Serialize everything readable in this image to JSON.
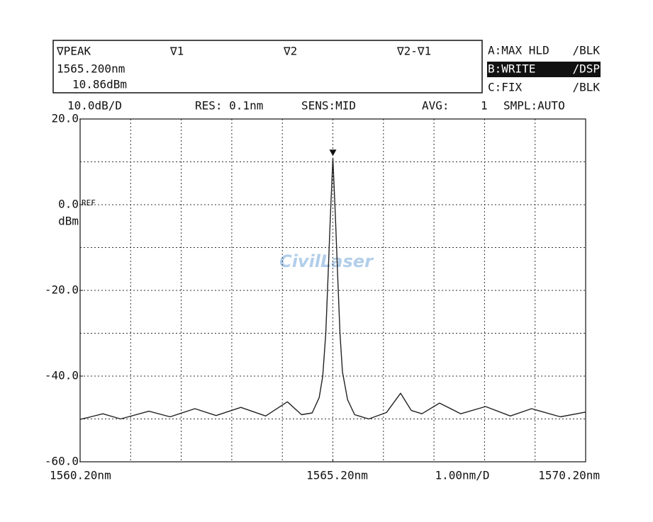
{
  "header": {
    "marker_labels": [
      "∇PEAK",
      "∇1",
      "∇2",
      "∇2-∇1"
    ],
    "peak_wavelength": "1565.200nm",
    "peak_level": "10.86dBm",
    "traces": [
      [
        "A:MAX HLD",
        "/BLK"
      ],
      [
        "B:WRITE",
        "/DSP"
      ],
      [
        "C:FIX",
        "/BLK"
      ]
    ],
    "status": [
      "10.0dB/D",
      "RES: 0.1nm",
      "SENS:MID",
      "AVG:",
      "1",
      "SMPL:AUTO"
    ]
  },
  "watermark": "CivilLaser",
  "chart_data": {
    "type": "line",
    "x": [
      1560.2,
      1560.41,
      1560.65,
      1561.0,
      1561.56,
      1561.98,
      1562.47,
      1562.89,
      1563.38,
      1563.87,
      1564.3,
      1564.58,
      1564.79,
      1564.93,
      1565.0,
      1565.06,
      1565.1,
      1565.15,
      1565.2,
      1565.25,
      1565.3,
      1565.34,
      1565.39,
      1565.49,
      1565.63,
      1565.91,
      1566.26,
      1566.54,
      1566.75,
      1566.96,
      1567.31,
      1567.73,
      1568.22,
      1568.71,
      1569.13,
      1569.7,
      1570.2
    ],
    "values": [
      -50.1,
      -49.5,
      -48.8,
      -50,
      -48.2,
      -49.5,
      -47.6,
      -49.2,
      -47.3,
      -49.3,
      -46.0,
      -49.0,
      -48.6,
      -45,
      -40,
      -30,
      -18,
      -3,
      10.86,
      -3,
      -18,
      -30,
      -39,
      -45.5,
      -49,
      -50,
      -48.5,
      -44,
      -48,
      -48.8,
      -46.3,
      -48.8,
      -47.1,
      -49.3,
      -47.6,
      -49.5,
      -48.4
    ],
    "color": "#222222",
    "xlim": [
      1560.2,
      1570.2
    ],
    "ylim": [
      -60,
      20
    ],
    "xticks": [
      {
        "value": 1560.2,
        "label": "1560.20nm"
      },
      {
        "value": 1565.2,
        "label": "1565.20nm"
      },
      {
        "value": 1570.2,
        "label": "1570.20nm"
      }
    ],
    "yticks": [
      {
        "value": 20,
        "label": "20.0"
      },
      {
        "value": 0,
        "label": "0.0"
      },
      {
        "value": -20,
        "label": "-20.0"
      },
      {
        "value": -40,
        "label": "-40.0"
      },
      {
        "value": -60,
        "label": "-60.0"
      }
    ],
    "xdivisions": 10,
    "ydivisions": 8,
    "grid": true,
    "ref_label": "REF",
    "y_unit": "dBm",
    "x_scale_label": "1.00nm/D"
  }
}
